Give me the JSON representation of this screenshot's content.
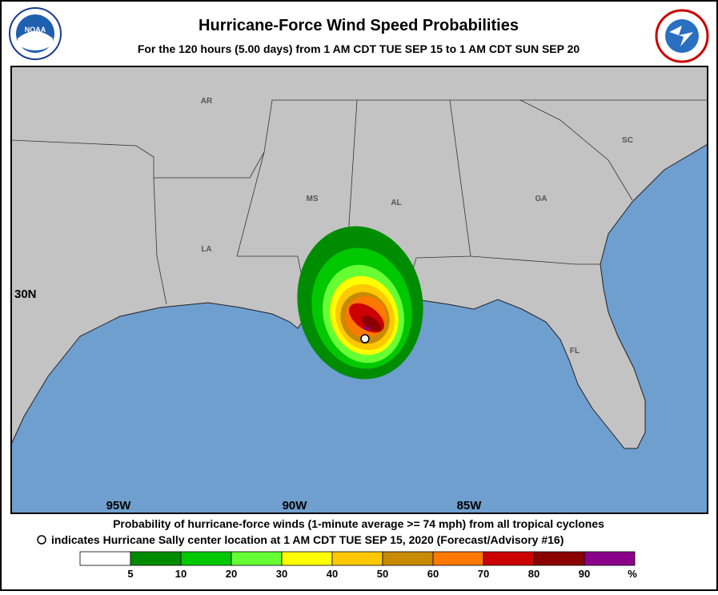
{
  "header": {
    "title": "Hurricane-Force Wind Speed Probabilities",
    "subtitle": "For the 120 hours (5.00 days) from 1 AM CDT TUE SEP 15 to 1 AM CDT SUN SEP 20"
  },
  "map": {
    "state_labels": [
      "AR",
      "MS",
      "AL",
      "GA",
      "SC",
      "LA",
      "FL"
    ],
    "lat_labels": [
      "30N"
    ],
    "lon_labels": [
      "95W",
      "90W",
      "85W"
    ]
  },
  "footer": {
    "line1": "Probability of hurricane-force winds (1-minute average >= 74 mph) from all tropical cyclones",
    "line2": "indicates Hurricane Sally center location at 1 AM CDT TUE SEP 15, 2020 (Forecast/Advisory #16)"
  },
  "legend": {
    "colors": [
      "#ffffff",
      "#008c00",
      "#00c800",
      "#66ff33",
      "#ffff00",
      "#ffc800",
      "#c88a00",
      "#ff7800",
      "#cc0000",
      "#8b0000",
      "#8b008b"
    ],
    "ticks": [
      "5",
      "10",
      "20",
      "30",
      "40",
      "50",
      "60",
      "70",
      "80",
      "90"
    ],
    "unit": "%"
  }
}
